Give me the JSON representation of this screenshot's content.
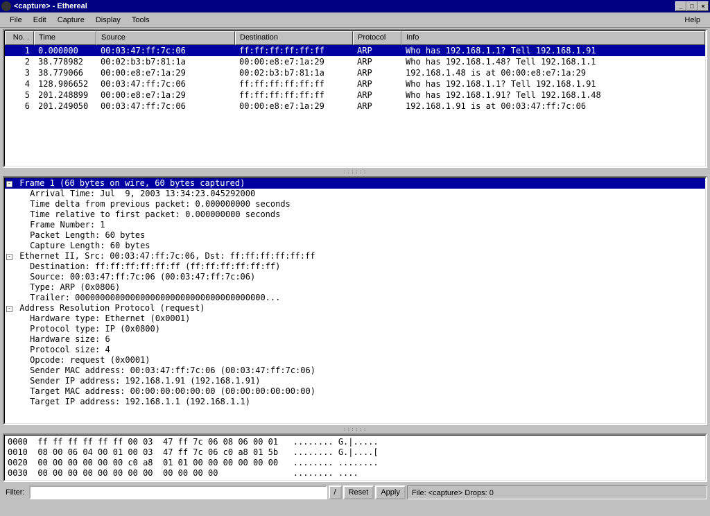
{
  "window": {
    "title": "<capture> - Ethereal",
    "min": "_",
    "max": "□",
    "close": "×"
  },
  "menu": {
    "file": "File",
    "edit": "Edit",
    "capture": "Capture",
    "display": "Display",
    "tools": "Tools",
    "help": "Help"
  },
  "columns": {
    "no": "No. .",
    "time": "Time",
    "source": "Source",
    "destination": "Destination",
    "protocol": "Protocol",
    "info": "Info"
  },
  "packets": [
    {
      "no": "1",
      "time": "0.000000",
      "src": "00:03:47:ff:7c:06",
      "dst": "ff:ff:ff:ff:ff:ff",
      "proto": "ARP",
      "info": "Who has 192.168.1.1?  Tell 192.168.1.91",
      "sel": true
    },
    {
      "no": "2",
      "time": "38.778982",
      "src": "00:02:b3:b7:81:1a",
      "dst": "00:00:e8:e7:1a:29",
      "proto": "ARP",
      "info": "Who has 192.168.1.48?  Tell 192.168.1.1"
    },
    {
      "no": "3",
      "time": "38.779066",
      "src": "00:00:e8:e7:1a:29",
      "dst": "00:02:b3:b7:81:1a",
      "proto": "ARP",
      "info": "192.168.1.48 is at 00:00:e8:e7:1a:29"
    },
    {
      "no": "4",
      "time": "128.906652",
      "src": "00:03:47:ff:7c:06",
      "dst": "ff:ff:ff:ff:ff:ff",
      "proto": "ARP",
      "info": "Who has 192.168.1.1?  Tell 192.168.1.91"
    },
    {
      "no": "5",
      "time": "201.248899",
      "src": "00:00:e8:e7:1a:29",
      "dst": "ff:ff:ff:ff:ff:ff",
      "proto": "ARP",
      "info": "Who has 192.168.1.91?  Tell 192.168.1.48"
    },
    {
      "no": "6",
      "time": "201.249050",
      "src": "00:03:47:ff:7c:06",
      "dst": "00:00:e8:e7:1a:29",
      "proto": "ARP",
      "info": "192.168.1.91 is at 00:03:47:ff:7c:06"
    }
  ],
  "detail": {
    "frame_header": "Frame 1 (60 bytes on wire, 60 bytes captured)",
    "frame_lines": [
      "Arrival Time: Jul  9, 2003 13:34:23.045292000",
      "Time delta from previous packet: 0.000000000 seconds",
      "Time relative to first packet: 0.000000000 seconds",
      "Frame Number: 1",
      "Packet Length: 60 bytes",
      "Capture Length: 60 bytes"
    ],
    "eth_header": "Ethernet II, Src: 00:03:47:ff:7c:06, Dst: ff:ff:ff:ff:ff:ff",
    "eth_lines": [
      "Destination: ff:ff:ff:ff:ff:ff (ff:ff:ff:ff:ff:ff)",
      "Source: 00:03:47:ff:7c:06 (00:03:47:ff:7c:06)",
      "Type: ARP (0x0806)",
      "Trailer: 00000000000000000000000000000000000000..."
    ],
    "arp_header": "Address Resolution Protocol (request)",
    "arp_lines": [
      "Hardware type: Ethernet (0x0001)",
      "Protocol type: IP (0x0800)",
      "Hardware size: 6",
      "Protocol size: 4",
      "Opcode: request (0x0001)",
      "Sender MAC address: 00:03:47:ff:7c:06 (00:03:47:ff:7c:06)",
      "Sender IP address: 192.168.1.91 (192.168.1.91)",
      "Target MAC address: 00:00:00:00:00:00 (00:00:00:00:00:00)",
      "Target IP address: 192.168.1.1 (192.168.1.1)"
    ]
  },
  "hex": [
    "0000  ff ff ff ff ff ff 00 03  47 ff 7c 06 08 06 00 01   ........ G.|.....",
    "0010  08 00 06 04 00 01 00 03  47 ff 7c 06 c0 a8 01 5b   ........ G.|....[",
    "0020  00 00 00 00 00 00 c0 a8  01 01 00 00 00 00 00 00   ........ ........",
    "0030  00 00 00 00 00 00 00 00  00 00 00 00               ........ ...."
  ],
  "status": {
    "filter_label": "Filter:",
    "reset": "Reset",
    "apply": "Apply",
    "dropdown": "/",
    "text": "File: <capture>  Drops: 0"
  },
  "colors": {
    "selection_bg": "#0000a0",
    "selection_fg": "#ffffff",
    "titlebar_bg": "#000080",
    "chrome_bg": "#c0c0c0",
    "panel_bg": "#ffffff"
  }
}
